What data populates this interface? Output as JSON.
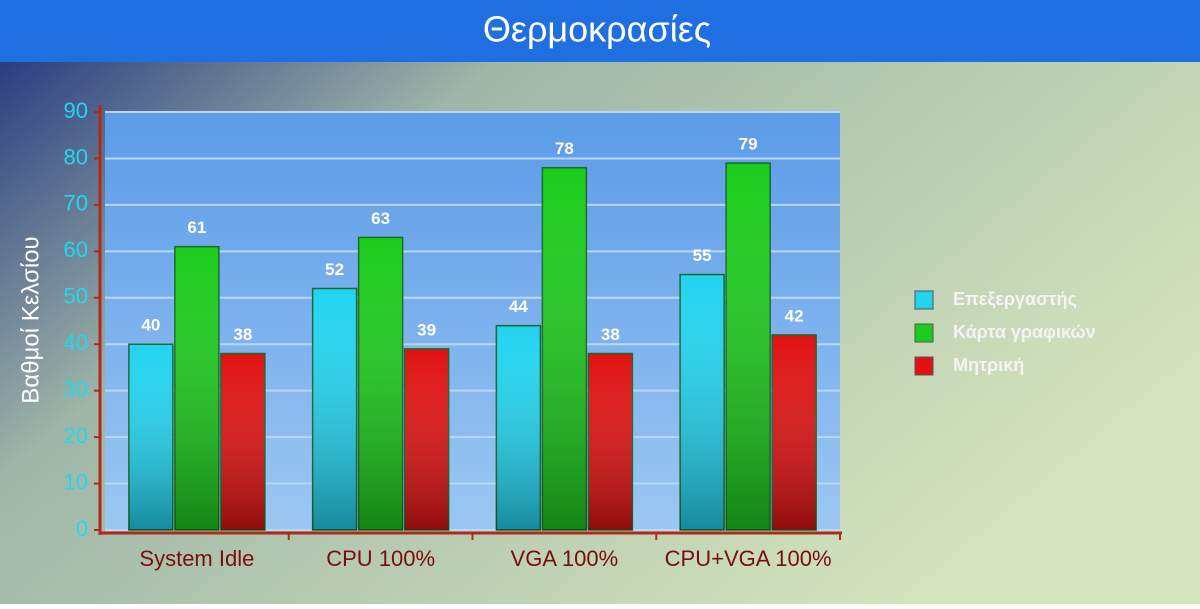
{
  "chart_data": {
    "type": "bar",
    "title": "Θερμοκρασίες",
    "y_label": "Βαθμοί Κελσίου",
    "categories": [
      "System Idle",
      "CPU 100%",
      "VGA 100%",
      "CPU+VGA 100%"
    ],
    "series": [
      {
        "name": "Επεξεργαστής",
        "color": "#22d4f0",
        "values": [
          40,
          52,
          44,
          55
        ]
      },
      {
        "name": "Κάρτα γραφικών",
        "color": "#1ccc1c",
        "values": [
          61,
          63,
          78,
          79
        ]
      },
      {
        "name": "Μητρική",
        "color": "#e01212",
        "values": [
          38,
          39,
          38,
          42
        ]
      }
    ],
    "ylim": [
      0,
      90
    ],
    "yticks": [
      0,
      10,
      20,
      30,
      40,
      50,
      60,
      70,
      80,
      90
    ],
    "grid": true,
    "legend": "right"
  }
}
